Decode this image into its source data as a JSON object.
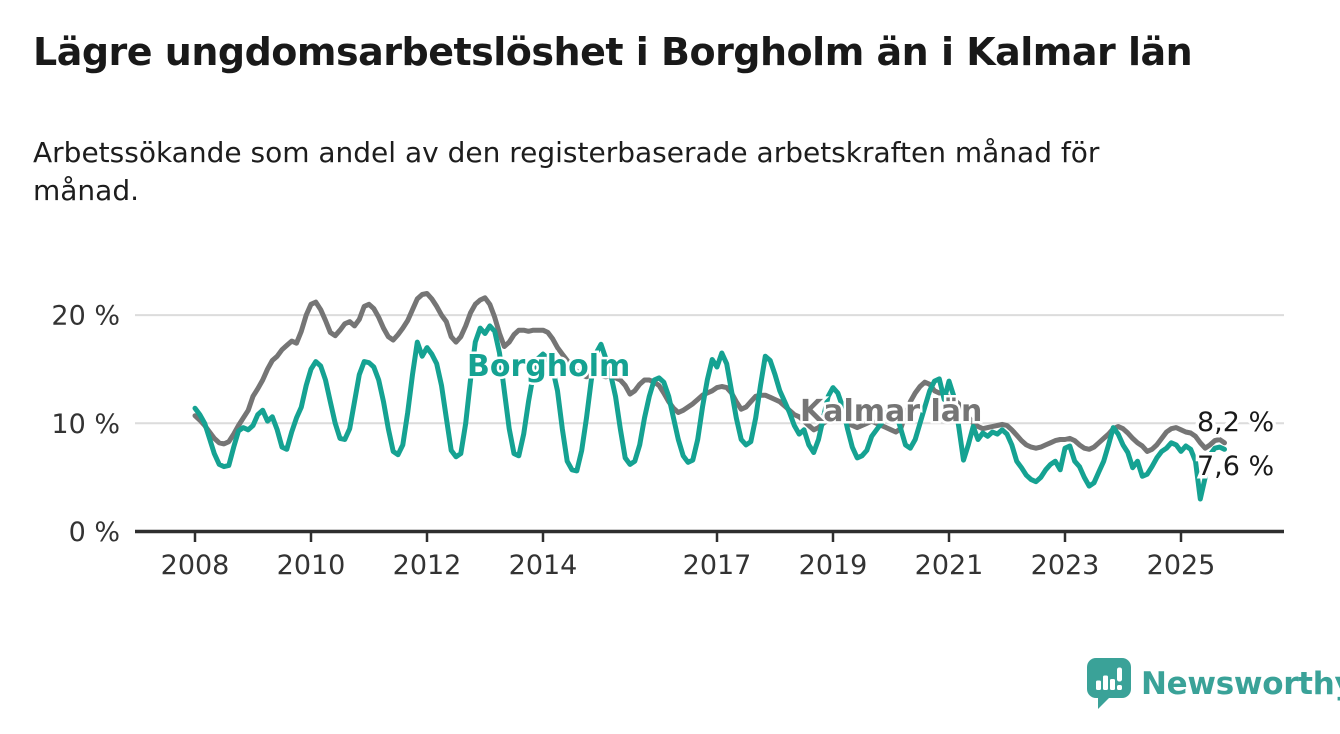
{
  "header": {
    "title": "Lägre ungdomsarbetslöshet i Borgholm än i Kalmar län",
    "subtitle": "Arbetssökande som andel av den registerbaserade arbetskraften månad för månad."
  },
  "chart_data": {
    "type": "line",
    "unit": "%",
    "x_start": "2008-01",
    "x_end": "2025-10",
    "x_tick_years": [
      2008,
      2010,
      2012,
      2014,
      2017,
      2019,
      2021,
      2023,
      2025
    ],
    "y_ticks": [
      {
        "value": 0,
        "label": "0 %"
      },
      {
        "value": 10,
        "label": "10 %"
      },
      {
        "value": 20,
        "label": "20 %"
      }
    ],
    "ylim": [
      0,
      23.5
    ],
    "grid": "horizontal",
    "legend_position": "inline-labels",
    "series": [
      {
        "name": "Kalmar län",
        "color": "#757575",
        "end_label": "8,2 %",
        "last_value": 8.2,
        "values": [
          10.7,
          10.3,
          9.8,
          9.2,
          8.6,
          8.2,
          8.1,
          8.3,
          9.0,
          9.8,
          10.5,
          11.2,
          12.5,
          13.2,
          14.0,
          15.0,
          15.8,
          16.2,
          16.8,
          17.2,
          17.6,
          17.4,
          18.5,
          20.0,
          21.0,
          21.2,
          20.5,
          19.5,
          18.4,
          18.1,
          18.6,
          19.2,
          19.4,
          19.0,
          19.6,
          20.8,
          21.0,
          20.6,
          19.8,
          18.8,
          18.0,
          17.7,
          18.2,
          18.8,
          19.5,
          20.5,
          21.5,
          21.9,
          22.0,
          21.5,
          20.8,
          20.0,
          19.4,
          18.0,
          17.5,
          18.0,
          19.0,
          20.2,
          21.0,
          21.4,
          21.6,
          21.0,
          19.8,
          18.3,
          17.1,
          17.5,
          18.2,
          18.6,
          18.6,
          18.5,
          18.6,
          18.6,
          18.6,
          18.4,
          17.8,
          17.0,
          16.4,
          15.8,
          15.2,
          14.8,
          14.5,
          14.3,
          14.5,
          14.4,
          14.4,
          14.3,
          14.4,
          14.2,
          14.0,
          13.5,
          12.7,
          13.0,
          13.6,
          14.0,
          14.0,
          13.8,
          13.5,
          12.8,
          12.0,
          11.4,
          11.0,
          11.2,
          11.5,
          11.8,
          12.2,
          12.6,
          12.8,
          13.0,
          13.3,
          13.4,
          13.3,
          12.8,
          12.0,
          11.3,
          11.5,
          12.0,
          12.5,
          12.6,
          12.6,
          12.4,
          12.2,
          12.0,
          11.6,
          11.2,
          10.8,
          10.6,
          10.2,
          9.8,
          9.4,
          9.6,
          10.0,
          10.3,
          10.4,
          10.5,
          10.3,
          10.0,
          9.8,
          9.6,
          9.8,
          10.0,
          10.2,
          10.0,
          9.8,
          9.6,
          9.4,
          9.2,
          9.5,
          10.8,
          12.0,
          12.8,
          13.4,
          13.8,
          13.6,
          13.0,
          12.8,
          12.6,
          12.4,
          12.2,
          11.8,
          11.2,
          10.6,
          10.0,
          9.7,
          9.5,
          9.6,
          9.7,
          9.8,
          9.9,
          9.8,
          9.4,
          8.9,
          8.4,
          8.0,
          7.8,
          7.7,
          7.8,
          8.0,
          8.2,
          8.4,
          8.5,
          8.5,
          8.6,
          8.4,
          8.0,
          7.7,
          7.6,
          7.8,
          8.2,
          8.6,
          9.0,
          9.5,
          9.7,
          9.5,
          9.1,
          8.6,
          8.2,
          7.9,
          7.4,
          7.6,
          8.0,
          8.6,
          9.2,
          9.5,
          9.6,
          9.4,
          9.2,
          9.1,
          8.8,
          8.2,
          7.7,
          8.0,
          8.4,
          8.5,
          8.2
        ]
      },
      {
        "name": "Borgholm",
        "color": "#15a292",
        "end_label": "7,6 %",
        "last_value": 7.6,
        "values": [
          11.4,
          10.8,
          10.0,
          8.6,
          7.2,
          6.2,
          6.0,
          6.1,
          7.8,
          9.3,
          9.6,
          9.4,
          9.8,
          10.8,
          11.2,
          10.2,
          10.6,
          9.4,
          7.8,
          7.6,
          9.2,
          10.5,
          11.5,
          13.5,
          15.0,
          15.7,
          15.3,
          14.0,
          12.0,
          10.0,
          8.6,
          8.5,
          9.5,
          12.0,
          14.5,
          15.7,
          15.6,
          15.2,
          14.0,
          12.0,
          9.5,
          7.4,
          7.1,
          8.0,
          11.0,
          14.5,
          17.5,
          16.2,
          17.0,
          16.4,
          15.5,
          13.5,
          10.5,
          7.5,
          6.9,
          7.2,
          10.0,
          14.0,
          17.5,
          18.8,
          18.3,
          19.0,
          18.5,
          16.5,
          13.0,
          9.5,
          7.2,
          7.0,
          9.0,
          12.0,
          14.5,
          16.0,
          16.4,
          16.0,
          15.0,
          13.0,
          9.5,
          6.5,
          5.7,
          5.6,
          7.5,
          10.5,
          14.0,
          16.5,
          17.3,
          16.0,
          14.5,
          12.5,
          9.5,
          6.8,
          6.2,
          6.5,
          8.0,
          10.5,
          12.5,
          14.0,
          14.2,
          13.8,
          12.5,
          10.5,
          8.5,
          7.0,
          6.4,
          6.6,
          8.5,
          11.5,
          14.0,
          15.9,
          15.2,
          16.5,
          15.5,
          13.0,
          10.5,
          8.5,
          8.0,
          8.3,
          10.5,
          13.5,
          16.2,
          15.8,
          14.5,
          13.0,
          12.0,
          11.0,
          9.8,
          9.0,
          9.4,
          8.0,
          7.3,
          8.5,
          10.5,
          12.5,
          13.3,
          12.8,
          11.5,
          9.5,
          7.8,
          6.8,
          7.0,
          7.5,
          8.8,
          9.4,
          10.0,
          11.0,
          11.5,
          11.0,
          9.5,
          8.0,
          7.7,
          8.5,
          10.0,
          11.5,
          13.0,
          13.9,
          14.1,
          12.2,
          13.9,
          12.5,
          9.7,
          6.6,
          8.0,
          9.7,
          8.5,
          9.1,
          8.8,
          9.2,
          9.0,
          9.4,
          9.0,
          8.0,
          6.5,
          5.9,
          5.2,
          4.8,
          4.6,
          5.0,
          5.7,
          6.2,
          6.5,
          5.7,
          7.7,
          7.9,
          6.5,
          6.0,
          5.0,
          4.2,
          4.5,
          5.5,
          6.5,
          8.0,
          9.6,
          9.0,
          8.0,
          7.3,
          5.9,
          6.5,
          5.1,
          5.3,
          6.0,
          6.8,
          7.4,
          7.7,
          8.2,
          8.0,
          7.4,
          7.9,
          7.6,
          6.5,
          3.0,
          5.0,
          7.1,
          7.7,
          7.8,
          7.6
        ]
      }
    ]
  },
  "branding": {
    "logo_text": "Newsworthy",
    "logo_color": "#3aa298"
  }
}
